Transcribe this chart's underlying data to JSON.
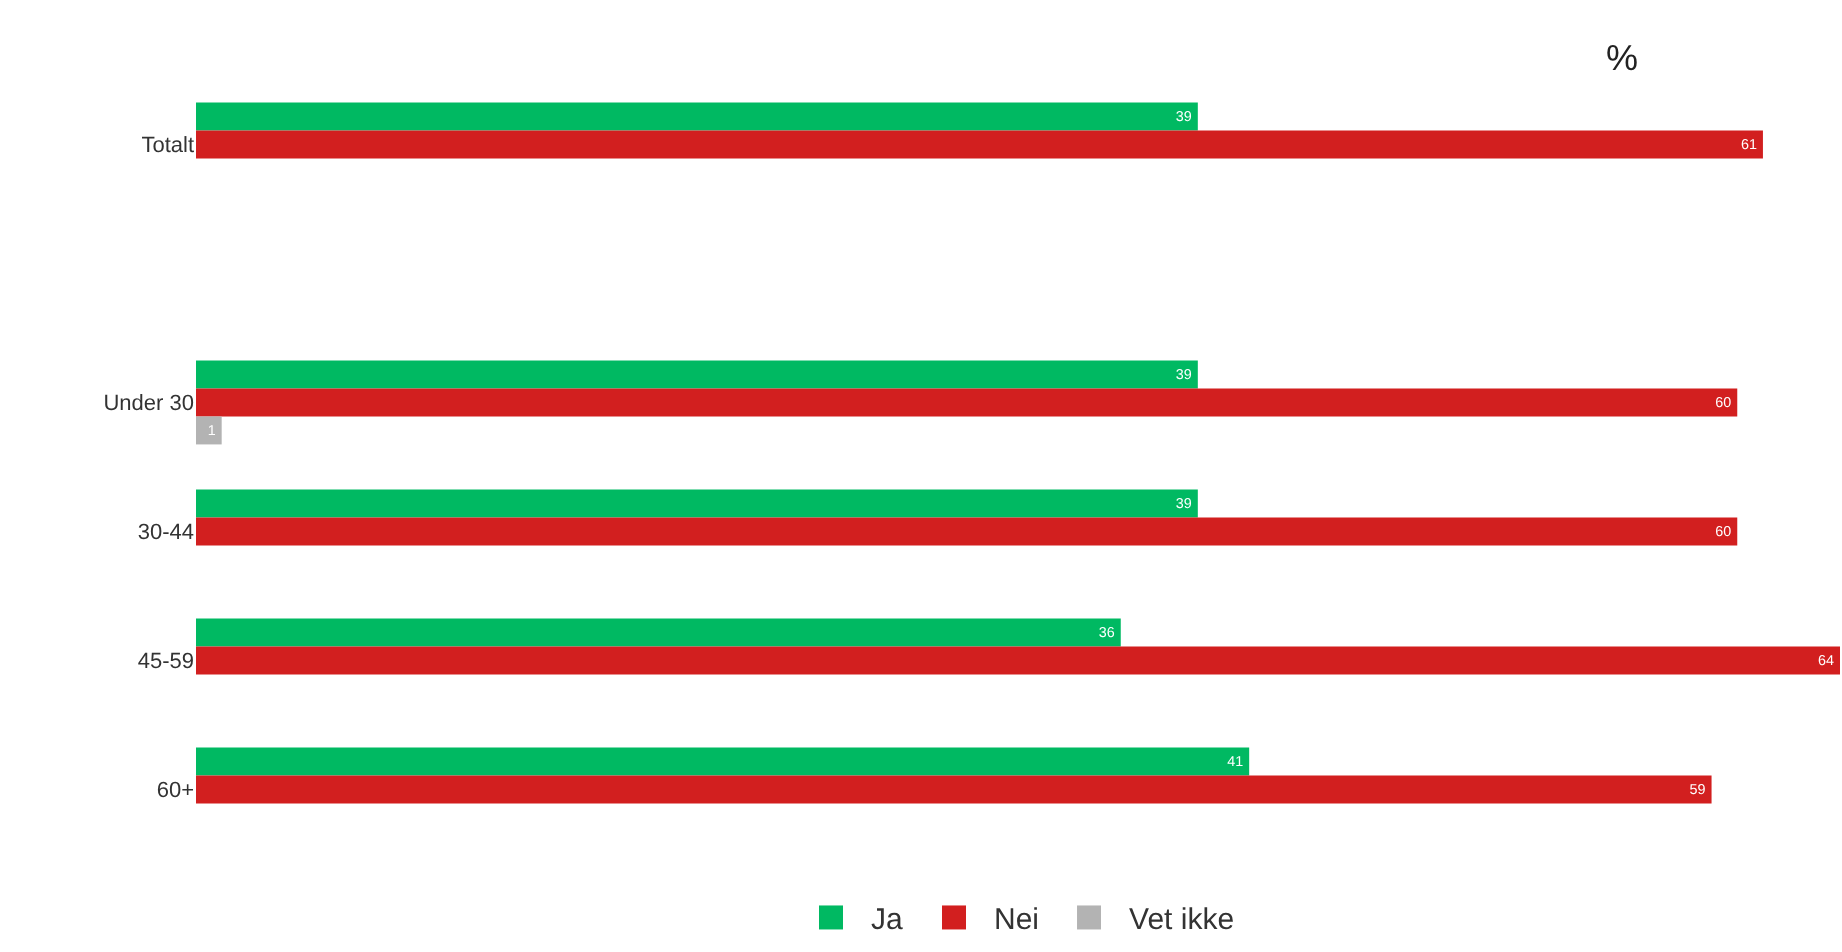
{
  "chart_data": {
    "type": "bar",
    "orientation": "horizontal",
    "categories": [
      "Totalt",
      null,
      "Under 30",
      "30-44",
      "45-59",
      "60+"
    ],
    "series": [
      {
        "name": "Ja",
        "color": "#00b962",
        "values": [
          39,
          null,
          39,
          39,
          36,
          41
        ]
      },
      {
        "name": "Nei",
        "color": "#d21f1f",
        "values": [
          61,
          null,
          60,
          60,
          64,
          59
        ]
      },
      {
        "name": "Vet ikke",
        "color": "#b3b3b3",
        "values": [
          null,
          null,
          1,
          null,
          null,
          null
        ]
      }
    ],
    "data_labels": true,
    "legend": "bottom",
    "grid": false,
    "annotations": [
      "%"
    ]
  }
}
